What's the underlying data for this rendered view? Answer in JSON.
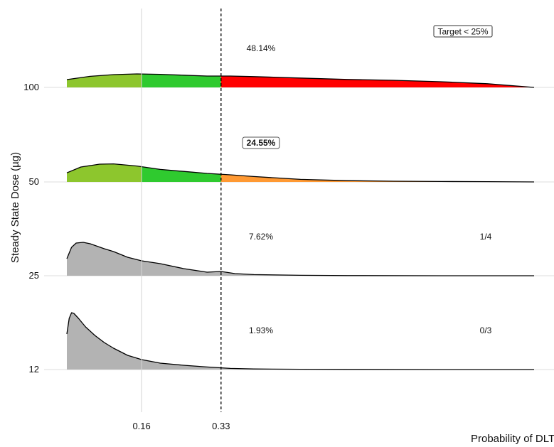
{
  "chart_data": {
    "type": "ridgeline-density",
    "title": "",
    "xlabel": "Probability of DLT",
    "ylabel": "Steady State Dose (µg)",
    "x_ticks": [
      {
        "value": 0.16,
        "label": "0.16"
      },
      {
        "value": 0.33,
        "label": "0.33"
      }
    ],
    "xlim": [
      0,
      1
    ],
    "reference_lines": [
      {
        "value": 0.16,
        "style": "solid-grey"
      },
      {
        "value": 0.33,
        "style": "dashed-black"
      }
    ],
    "target_label": "Target < 25%",
    "series": [
      {
        "dose_label": "100",
        "overdose_percent": "48.14%",
        "highlight": false,
        "fraction_label": "",
        "band_colors": [
          "#8dc62d",
          "#2fca2f",
          "#ff0000"
        ],
        "x": [
          0.0,
          0.05,
          0.1,
          0.15,
          0.2,
          0.25,
          0.3,
          0.35,
          0.4,
          0.5,
          0.6,
          0.7,
          0.8,
          0.9,
          1.0
        ],
        "y": [
          0.55,
          0.78,
          0.9,
          0.95,
          0.92,
          0.86,
          0.8,
          0.8,
          0.76,
          0.66,
          0.56,
          0.5,
          0.4,
          0.26,
          0.0
        ]
      },
      {
        "dose_label": "50",
        "overdose_percent": "24.55%",
        "highlight": true,
        "fraction_label": "",
        "band_colors": [
          "#8dc62d",
          "#2fca2f",
          "#ff9933"
        ],
        "x": [
          0.0,
          0.03,
          0.07,
          0.1,
          0.15,
          0.2,
          0.25,
          0.3,
          0.35,
          0.4,
          0.5,
          0.6,
          0.7,
          0.8,
          0.9,
          1.0
        ],
        "y": [
          0.64,
          1.05,
          1.25,
          1.27,
          1.12,
          0.88,
          0.74,
          0.6,
          0.5,
          0.38,
          0.18,
          0.09,
          0.05,
          0.03,
          0.02,
          0.0
        ]
      },
      {
        "dose_label": "25",
        "overdose_percent": "7.62%",
        "highlight": false,
        "fraction_label": "1/4",
        "band_colors": [
          "#b3b3b3",
          "#b3b3b3",
          "#b3b3b3"
        ],
        "x": [
          0.0,
          0.01,
          0.02,
          0.035,
          0.05,
          0.08,
          0.1,
          0.13,
          0.16,
          0.2,
          0.25,
          0.3,
          0.33,
          0.36,
          0.4,
          0.5,
          0.6,
          0.8,
          1.0
        ],
        "y": [
          1.2,
          2.0,
          2.3,
          2.35,
          2.25,
          1.9,
          1.7,
          1.3,
          1.05,
          0.85,
          0.5,
          0.25,
          0.3,
          0.15,
          0.08,
          0.03,
          0.01,
          0.0,
          0.0
        ]
      },
      {
        "dose_label": "12",
        "overdose_percent": "1.93%",
        "highlight": false,
        "fraction_label": "0/3",
        "band_colors": [
          "#b3b3b3",
          "#b3b3b3",
          "#b3b3b3"
        ],
        "x": [
          0.0,
          0.005,
          0.01,
          0.015,
          0.025,
          0.04,
          0.06,
          0.08,
          0.1,
          0.13,
          0.16,
          0.2,
          0.25,
          0.3,
          0.35,
          0.4,
          0.5,
          0.6,
          0.8,
          1.0
        ],
        "y": [
          2.5,
          3.6,
          4.0,
          3.95,
          3.6,
          3.0,
          2.4,
          1.9,
          1.5,
          1.0,
          0.7,
          0.45,
          0.3,
          0.18,
          0.08,
          0.04,
          0.02,
          0.01,
          0.0,
          0.0
        ]
      }
    ]
  }
}
